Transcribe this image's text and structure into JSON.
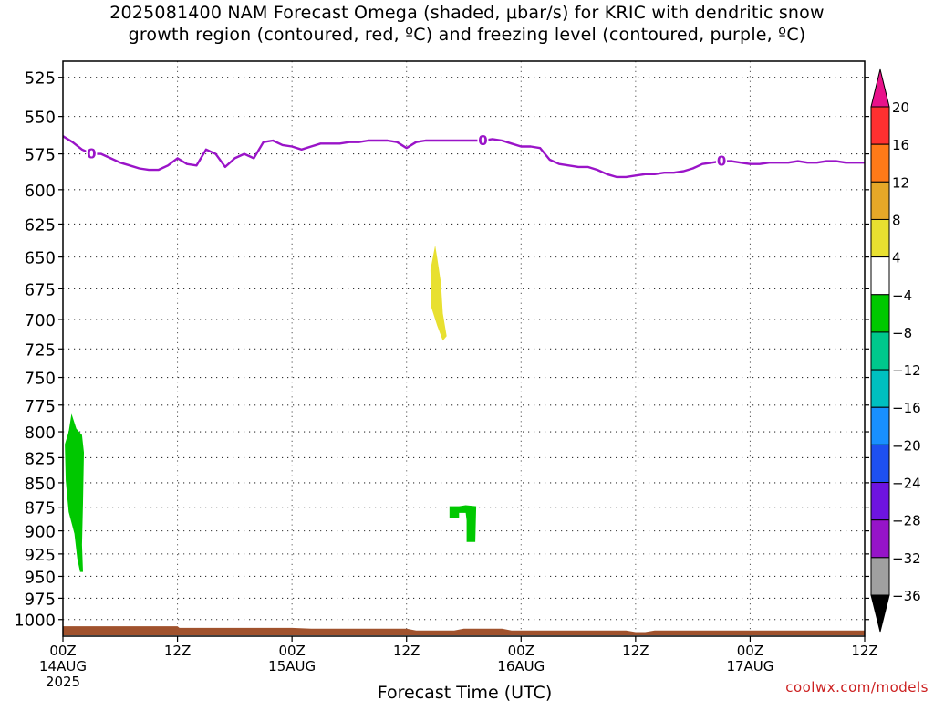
{
  "chart_data": {
    "type": "heatmap",
    "title_line1": "2025081400 NAM Forecast Omega (shaded, μbar/s) for KRIC with dendritic snow",
    "title_line2": "growth region (contoured, red, ºC) and freezing level (contoured, purple, ºC)",
    "xlabel": "Forecast Time (UTC)",
    "ylabel": "",
    "y_axis": {
      "scale": "pressure-log",
      "ticks": [
        525,
        550,
        575,
        600,
        625,
        650,
        675,
        700,
        725,
        750,
        775,
        800,
        825,
        850,
        875,
        900,
        925,
        950,
        975,
        1000
      ],
      "ylim": [
        1020,
        515
      ],
      "grid": true
    },
    "x_axis": {
      "unit": "hours from 2025081400",
      "xlim": [
        0,
        84
      ],
      "ticks": [
        {
          "hour": 0,
          "label": "00Z",
          "date": "14AUG",
          "year": "2025"
        },
        {
          "hour": 12,
          "label": "12Z",
          "date": "",
          "year": ""
        },
        {
          "hour": 24,
          "label": "00Z",
          "date": "15AUG",
          "year": ""
        },
        {
          "hour": 36,
          "label": "12Z",
          "date": "",
          "year": ""
        },
        {
          "hour": 48,
          "label": "00Z",
          "date": "16AUG",
          "year": ""
        },
        {
          "hour": 60,
          "label": "12Z",
          "date": "",
          "year": ""
        },
        {
          "hour": 72,
          "label": "00Z",
          "date": "17AUG",
          "year": ""
        },
        {
          "hour": 84,
          "label": "12Z",
          "date": "",
          "year": ""
        }
      ],
      "grid": true
    },
    "colorbar": {
      "labels": [
        "20",
        "16",
        "12",
        "8",
        "4",
        "−4",
        "−8",
        "−12",
        "−16",
        "−20",
        "−24",
        "−28",
        "−32",
        "−36"
      ],
      "top_color": "#e8128a",
      "bottom_color": "#000000",
      "colors": [
        "#ff3030",
        "#ff7a18",
        "#e6a828",
        "#e8e030",
        "#ffffff",
        "#00c800",
        "#00c88c",
        "#00c0c0",
        "#1890ff",
        "#1e50f0",
        "#6e14e0",
        "#9614c8",
        "#a0a0a0"
      ]
    },
    "freezing_level": {
      "color": "#9a14c8",
      "label": "0",
      "points": [
        [
          0,
          563
        ],
        [
          1,
          567
        ],
        [
          2,
          572
        ],
        [
          3,
          575
        ],
        [
          4,
          575
        ],
        [
          5,
          578
        ],
        [
          6,
          581
        ],
        [
          7,
          583
        ],
        [
          8,
          585
        ],
        [
          9,
          586
        ],
        [
          10,
          586
        ],
        [
          11,
          583
        ],
        [
          12,
          578
        ],
        [
          13,
          582
        ],
        [
          14,
          583
        ],
        [
          15,
          572
        ],
        [
          16,
          575
        ],
        [
          17,
          584
        ],
        [
          18,
          578
        ],
        [
          19,
          575
        ],
        [
          20,
          578
        ],
        [
          21,
          567
        ],
        [
          22,
          566
        ],
        [
          23,
          569
        ],
        [
          24,
          570
        ],
        [
          25,
          572
        ],
        [
          26,
          570
        ],
        [
          27,
          568
        ],
        [
          28,
          568
        ],
        [
          29,
          568
        ],
        [
          30,
          567
        ],
        [
          31,
          567
        ],
        [
          32,
          566
        ],
        [
          33,
          566
        ],
        [
          34,
          566
        ],
        [
          35,
          567
        ],
        [
          36,
          571
        ],
        [
          37,
          567
        ],
        [
          38,
          566
        ],
        [
          39,
          566
        ],
        [
          40,
          566
        ],
        [
          41,
          566
        ],
        [
          42,
          566
        ],
        [
          43,
          566
        ],
        [
          44,
          566
        ],
        [
          45,
          565
        ],
        [
          46,
          566
        ],
        [
          47,
          568
        ],
        [
          48,
          570
        ],
        [
          49,
          570
        ],
        [
          50,
          571
        ],
        [
          51,
          579
        ],
        [
          52,
          582
        ],
        [
          53,
          583
        ],
        [
          54,
          584
        ],
        [
          55,
          584
        ],
        [
          56,
          586
        ],
        [
          57,
          589
        ],
        [
          58,
          591
        ],
        [
          59,
          591
        ],
        [
          60,
          590
        ],
        [
          61,
          589
        ],
        [
          62,
          589
        ],
        [
          63,
          588
        ],
        [
          64,
          588
        ],
        [
          65,
          587
        ],
        [
          66,
          585
        ],
        [
          67,
          582
        ],
        [
          68,
          581
        ],
        [
          69,
          580
        ],
        [
          70,
          580
        ],
        [
          71,
          581
        ],
        [
          72,
          582
        ],
        [
          73,
          582
        ],
        [
          74,
          581
        ],
        [
          75,
          581
        ],
        [
          76,
          581
        ],
        [
          77,
          580
        ],
        [
          78,
          581
        ],
        [
          79,
          581
        ],
        [
          80,
          580
        ],
        [
          81,
          580
        ],
        [
          82,
          581
        ],
        [
          83,
          581
        ],
        [
          84,
          581
        ]
      ],
      "label_positions": [
        [
          3,
          575
        ],
        [
          44,
          566
        ],
        [
          69,
          580
        ]
      ]
    },
    "shaded_regions": [
      {
        "value": "4 to 8",
        "color": "#e8e030",
        "polygon": [
          [
            39.0,
            641
          ],
          [
            38.5,
            660
          ],
          [
            38.6,
            690
          ],
          [
            39.2,
            705
          ],
          [
            39.8,
            718
          ],
          [
            40.2,
            714
          ],
          [
            39.8,
            695
          ],
          [
            39.6,
            670
          ],
          [
            39.2,
            650
          ]
        ]
      },
      {
        "value": "-4 to -8",
        "color": "#00c800",
        "polygon": [
          [
            0.2,
            812
          ],
          [
            0.3,
            848
          ],
          [
            0.6,
            880
          ],
          [
            1.2,
            903
          ],
          [
            1.5,
            930
          ],
          [
            1.8,
            945
          ],
          [
            2.1,
            945
          ],
          [
            2.0,
            915
          ],
          [
            2.1,
            870
          ],
          [
            2.2,
            820
          ],
          [
            2.0,
            803
          ],
          [
            1.4,
            797
          ],
          [
            0.9,
            783
          ],
          [
            0.6,
            800
          ]
        ]
      },
      {
        "value": "-4 to -8",
        "color": "#00c800",
        "polygon": [
          [
            40.5,
            874
          ],
          [
            40.5,
            886
          ],
          [
            41.5,
            886
          ],
          [
            41.5,
            881
          ],
          [
            42.2,
            881
          ],
          [
            42.3,
            889
          ],
          [
            42.3,
            912
          ],
          [
            43.2,
            912
          ],
          [
            43.3,
            874
          ],
          [
            42.2,
            873
          ],
          [
            41.5,
            874
          ]
        ]
      }
    ],
    "terrain": {
      "color": "#a0522d",
      "top_pressure": [
        [
          0,
          1008
        ],
        [
          12,
          1008
        ],
        [
          12.2,
          1010
        ],
        [
          24,
          1010
        ],
        [
          26,
          1011
        ],
        [
          36,
          1011
        ],
        [
          37,
          1013
        ],
        [
          41,
          1013
        ],
        [
          42,
          1011
        ],
        [
          46,
          1011
        ],
        [
          47,
          1013
        ],
        [
          59,
          1013
        ],
        [
          60,
          1015
        ],
        [
          61,
          1015
        ],
        [
          62,
          1013
        ],
        [
          84,
          1013
        ]
      ]
    }
  },
  "credit": "coolwx.com/models"
}
